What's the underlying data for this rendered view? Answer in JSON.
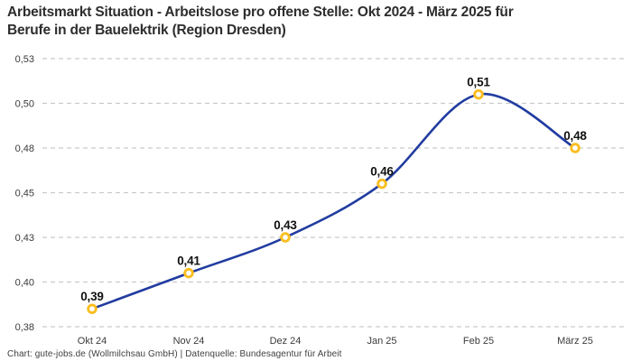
{
  "title": {
    "line1": "Arbeitsmarkt Situation - Arbeitslose pro offene Stelle: Okt 2024 - März 2025 für",
    "line2": "Berufe in der Bauelektrik (Region Dresden)"
  },
  "attribution": "Chart: gute-jobs.de (Wollmilchsau GmbH) | Datenquelle: Bundesagentur für Arbeit",
  "colors": {
    "line": "#213ca0",
    "marker_ring": "#fbbe20",
    "marker_fill": "#ffffff",
    "grid": "#c9c9c9",
    "axis_text": "#3b3b3b",
    "value_text": "#111111"
  },
  "chart_data": {
    "type": "line",
    "title": "Arbeitsmarkt Situation - Arbeitslose pro offene Stelle: Okt 2024 - März 2025 für Berufe in der Bauelektrik (Region Dresden)",
    "xlabel": "",
    "ylabel": "",
    "categories": [
      "Okt 24",
      "Nov 24",
      "Dez 24",
      "Jan 25",
      "Feb 25",
      "März 25"
    ],
    "series": [
      {
        "name": "Arbeitslose pro offene Stelle",
        "values": [
          0.39,
          0.41,
          0.43,
          0.46,
          0.51,
          0.48
        ],
        "point_labels": [
          "0,39",
          "0,41",
          "0,43",
          "0,46",
          "0,51",
          "0,48"
        ]
      }
    ],
    "ylim": [
      0.38,
      0.53
    ],
    "y_ticks": [
      {
        "value": 0.53,
        "label": "0,53"
      },
      {
        "value": 0.505,
        "label": "0,50"
      },
      {
        "value": 0.48,
        "label": "0,48"
      },
      {
        "value": 0.455,
        "label": "0,45"
      },
      {
        "value": 0.43,
        "label": "0,43"
      },
      {
        "value": 0.405,
        "label": "0,40"
      },
      {
        "value": 0.38,
        "label": "0,38"
      }
    ],
    "grid": "horizontal-dashed",
    "legend": "none",
    "line_style": "smooth",
    "marker_style": "open-circle"
  }
}
